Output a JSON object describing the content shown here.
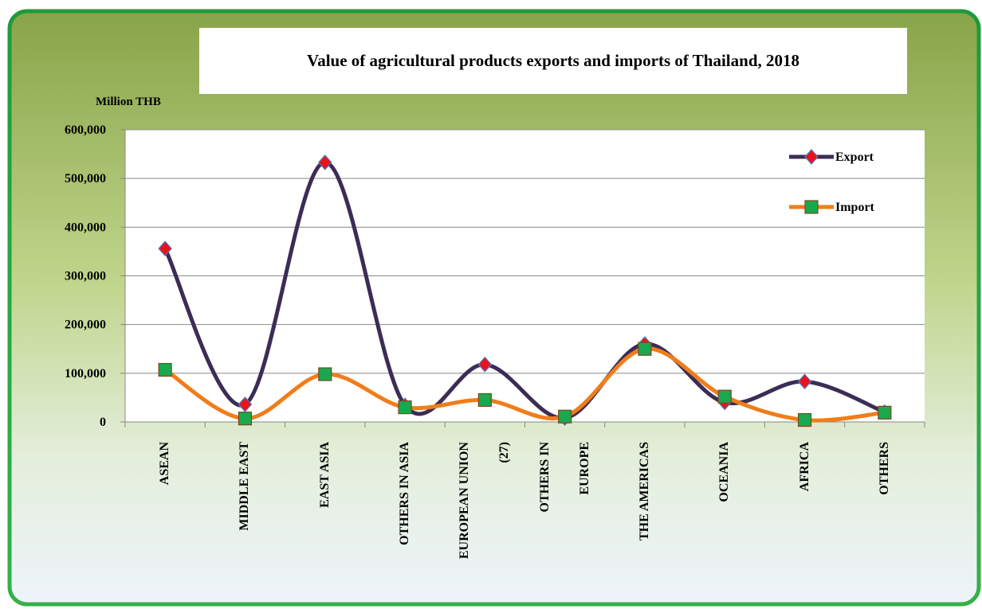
{
  "chart_data": {
    "type": "line",
    "title": "Value of agricultural products exports and imports of Thailand, 2018",
    "y_label": "Million THB",
    "categories": [
      "ASEAN",
      "MIDDLE EAST",
      "EAST ASIA",
      "OTHERS IN ASIA",
      "EUROPEAN UNION (27)",
      "OTHERS IN EUROPE",
      "THE AMERICAS",
      "OCEANIA",
      "AFRICA",
      "OTHERS"
    ],
    "series": [
      {
        "name": "Export",
        "color": "#3b2d55",
        "marker": "diamond",
        "marker_color": "#e8141b",
        "values": [
          356000,
          36000,
          533000,
          34000,
          118000,
          8000,
          160000,
          40000,
          83000,
          20000
        ]
      },
      {
        "name": "Import",
        "color": "#f07d1a",
        "marker": "square",
        "marker_color": "#1aa84f",
        "values": [
          107000,
          7000,
          98000,
          30000,
          45000,
          11000,
          150000,
          52000,
          4000,
          19000
        ]
      }
    ],
    "ylim": [
      0,
      600000
    ],
    "yticks": [
      0,
      {
        "value": 100000,
        "label": "100,000"
      },
      {
        "value": 200000,
        "label": "200,000"
      },
      {
        "value": 300000,
        "label": "300,000"
      },
      {
        "value": 400000,
        "label": "400,000"
      },
      {
        "value": 500000,
        "label": "500,000"
      },
      {
        "value": 600000,
        "label": "600,000"
      }
    ],
    "grid": true,
    "smooth": true,
    "legend": "upper right"
  }
}
